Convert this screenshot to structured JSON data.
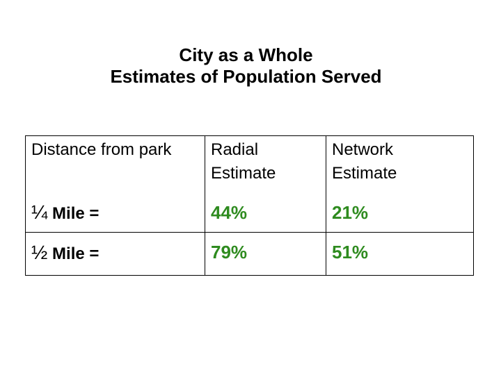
{
  "title": {
    "line1": "City as a Whole",
    "line2": "Estimates of Population Served"
  },
  "table": {
    "headers": {
      "col1": "Distance from park",
      "col2_line1": "Radial",
      "col2_line2": "Estimate",
      "col3_line1": "Network",
      "col3_line2": "Estimate"
    },
    "rows": [
      {
        "fraction": "¼",
        "label": " Mile =",
        "radial": "44%",
        "network": "21%"
      },
      {
        "fraction": "½",
        "label": " Mile =",
        "radial": "79%",
        "network": "51%"
      }
    ]
  },
  "colors": {
    "value_text": "#2e8b1f",
    "text": "#000000",
    "border": "#000000",
    "background": "#ffffff"
  }
}
